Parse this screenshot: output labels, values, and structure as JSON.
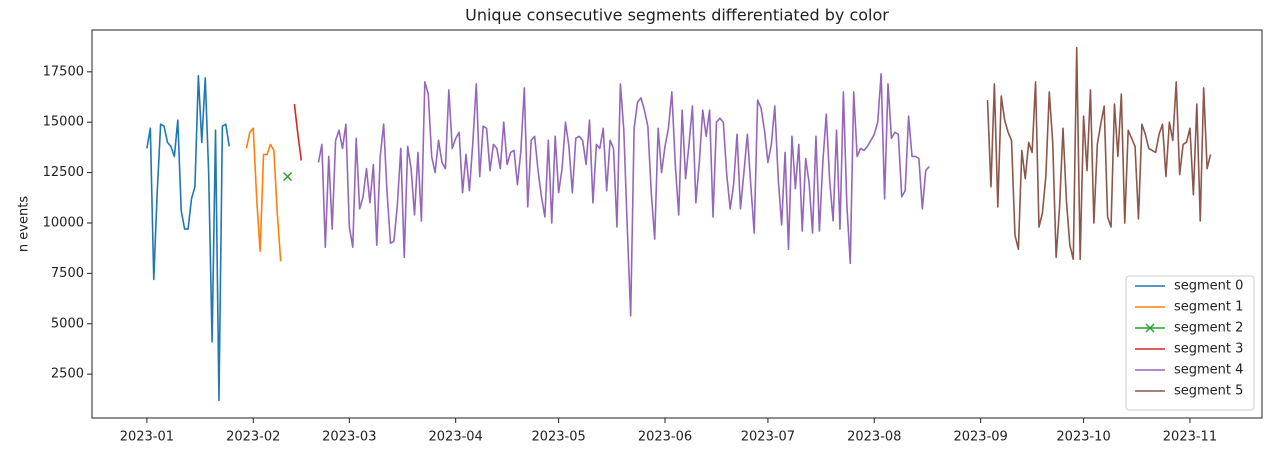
{
  "chart_data": {
    "type": "line",
    "title": "Unique consecutive segments differentiated by color",
    "ylabel": "n events",
    "ylim": [
      325,
      19575
    ],
    "yticks": [
      2500,
      5000,
      7500,
      10000,
      12500,
      15000,
      17500
    ],
    "xlim": [
      "2022-12-16",
      "2023-11-22"
    ],
    "xticks": [
      "2023-01",
      "2023-02",
      "2023-03",
      "2023-04",
      "2023-05",
      "2023-06",
      "2023-07",
      "2023-08",
      "2023-09",
      "2023-10",
      "2023-11"
    ],
    "legend": "lower right",
    "series": [
      {
        "name": "segment 0",
        "color": "#1f77b4",
        "x": [
          "2023-01-01",
          "2023-01-02",
          "2023-01-03",
          "2023-01-04",
          "2023-01-05",
          "2023-01-06",
          "2023-01-07",
          "2023-01-08",
          "2023-01-09",
          "2023-01-10",
          "2023-01-11",
          "2023-01-12",
          "2023-01-13",
          "2023-01-14",
          "2023-01-15",
          "2023-01-16",
          "2023-01-17",
          "2023-01-18",
          "2023-01-19",
          "2023-01-20",
          "2023-01-21",
          "2023-01-22",
          "2023-01-23",
          "2023-01-24",
          "2023-01-25"
        ],
        "values": [
          13700,
          14700,
          7200,
          11500,
          14900,
          14800,
          14000,
          13800,
          13300,
          15100,
          10600,
          9700,
          9700,
          11200,
          11800,
          17300,
          14000,
          17200,
          12500,
          4100,
          14600,
          1200,
          14800,
          14900,
          13800
        ]
      },
      {
        "name": "segment 1",
        "color": "#ff7f0e",
        "x": [
          "2023-01-30",
          "2023-01-31",
          "2023-02-01",
          "2023-02-02",
          "2023-02-03",
          "2023-02-04",
          "2023-02-05",
          "2023-02-06",
          "2023-02-07",
          "2023-02-08",
          "2023-02-09"
        ],
        "values": [
          13700,
          14500,
          14700,
          11200,
          8600,
          13400,
          13400,
          13900,
          13600,
          10500,
          8100
        ]
      },
      {
        "name": "segment 2",
        "color": "#2ca02c",
        "marker": "x",
        "x": [
          "2023-02-11"
        ],
        "values": [
          12300
        ]
      },
      {
        "name": "segment 3",
        "color": "#d62728",
        "x": [
          "2023-02-13",
          "2023-02-14",
          "2023-02-15"
        ],
        "values": [
          15900,
          14400,
          13100
        ]
      },
      {
        "name": "segment 4",
        "color": "#9467bd",
        "x": [
          "2023-02-20",
          "2023-02-21",
          "2023-02-22",
          "2023-02-23",
          "2023-02-24",
          "2023-02-25",
          "2023-02-26",
          "2023-02-27",
          "2023-02-28",
          "2023-03-01",
          "2023-03-02",
          "2023-03-03",
          "2023-03-04",
          "2023-03-05",
          "2023-03-06",
          "2023-03-07",
          "2023-03-08",
          "2023-03-09",
          "2023-03-10",
          "2023-03-11",
          "2023-03-12",
          "2023-03-13",
          "2023-03-14",
          "2023-03-15",
          "2023-03-16",
          "2023-03-17",
          "2023-03-18",
          "2023-03-19",
          "2023-03-20",
          "2023-03-21",
          "2023-03-22",
          "2023-03-23",
          "2023-03-24",
          "2023-03-25",
          "2023-03-26",
          "2023-03-27",
          "2023-03-28",
          "2023-03-29",
          "2023-03-30",
          "2023-03-31",
          "2023-04-01",
          "2023-04-02",
          "2023-04-03",
          "2023-04-04",
          "2023-04-05",
          "2023-04-06",
          "2023-04-07",
          "2023-04-08",
          "2023-04-09",
          "2023-04-10",
          "2023-04-11",
          "2023-04-12",
          "2023-04-13",
          "2023-04-14",
          "2023-04-15",
          "2023-04-16",
          "2023-04-17",
          "2023-04-18",
          "2023-04-19",
          "2023-04-20",
          "2023-04-21",
          "2023-04-22",
          "2023-04-23",
          "2023-04-24",
          "2023-04-25",
          "2023-04-26",
          "2023-04-27",
          "2023-04-28",
          "2023-04-29",
          "2023-04-30",
          "2023-05-01",
          "2023-05-02",
          "2023-05-03",
          "2023-05-04",
          "2023-05-05",
          "2023-05-06",
          "2023-05-07",
          "2023-05-08",
          "2023-05-09",
          "2023-05-10",
          "2023-05-11",
          "2023-05-12",
          "2023-05-13",
          "2023-05-14",
          "2023-05-15",
          "2023-05-16",
          "2023-05-17",
          "2023-05-18",
          "2023-05-19",
          "2023-05-20",
          "2023-05-21",
          "2023-05-22",
          "2023-05-23",
          "2023-05-24",
          "2023-05-25",
          "2023-05-26",
          "2023-05-27",
          "2023-05-28",
          "2023-05-29",
          "2023-05-30",
          "2023-05-31",
          "2023-06-01",
          "2023-06-02",
          "2023-06-03",
          "2023-06-04",
          "2023-06-05",
          "2023-06-06",
          "2023-06-07",
          "2023-06-08",
          "2023-06-09",
          "2023-06-10",
          "2023-06-11",
          "2023-06-12",
          "2023-06-13",
          "2023-06-14",
          "2023-06-15",
          "2023-06-16",
          "2023-06-17",
          "2023-06-18",
          "2023-06-19",
          "2023-06-20",
          "2023-06-21",
          "2023-06-22",
          "2023-06-23",
          "2023-06-24",
          "2023-06-25",
          "2023-06-26",
          "2023-06-27",
          "2023-06-28",
          "2023-06-29",
          "2023-06-30",
          "2023-07-01",
          "2023-07-02",
          "2023-07-03",
          "2023-07-04",
          "2023-07-05",
          "2023-07-06",
          "2023-07-07",
          "2023-07-08",
          "2023-07-09",
          "2023-07-10",
          "2023-07-11",
          "2023-07-12",
          "2023-07-13",
          "2023-07-14",
          "2023-07-15",
          "2023-07-16",
          "2023-07-17",
          "2023-07-18",
          "2023-07-19",
          "2023-07-20",
          "2023-07-21",
          "2023-07-22",
          "2023-07-23",
          "2023-07-24",
          "2023-07-25",
          "2023-07-26",
          "2023-07-27",
          "2023-07-28",
          "2023-07-29",
          "2023-07-30",
          "2023-07-31",
          "2023-08-01",
          "2023-08-02",
          "2023-08-03",
          "2023-08-04",
          "2023-08-05",
          "2023-08-06",
          "2023-08-07",
          "2023-08-08",
          "2023-08-09",
          "2023-08-10",
          "2023-08-11",
          "2023-08-12",
          "2023-08-13",
          "2023-08-14",
          "2023-08-15",
          "2023-08-16",
          "2023-08-17"
        ],
        "values": [
          13000,
          13900,
          8800,
          13300,
          9700,
          14100,
          14600,
          13700,
          14900,
          9800,
          8800,
          14200,
          10700,
          11300,
          12700,
          11000,
          12900,
          8900,
          13300,
          14900,
          11500,
          9000,
          9100,
          10900,
          13700,
          8300,
          13800,
          12700,
          10400,
          13500,
          10100,
          17000,
          16400,
          13300,
          12500,
          14100,
          13000,
          12700,
          16600,
          13700,
          14200,
          14500,
          11500,
          13400,
          11600,
          14000,
          16900,
          12300,
          14800,
          14700,
          12600,
          13900,
          13700,
          12700,
          15000,
          12900,
          13500,
          13600,
          11900,
          13600,
          16700,
          10800,
          14100,
          14300,
          12600,
          11300,
          10300,
          14100,
          10000,
          14300,
          11500,
          12700,
          15000,
          13800,
          11500,
          14200,
          14300,
          14100,
          12900,
          15100,
          11000,
          13900,
          13700,
          14700,
          11600,
          14100,
          13700,
          9800,
          16900,
          14600,
          9800,
          5400,
          14700,
          16000,
          16200,
          15600,
          14800,
          11500,
          9200,
          14700,
          12500,
          13800,
          14700,
          16500,
          12900,
          10400,
          15600,
          12200,
          13900,
          15800,
          11000,
          13000,
          15600,
          14300,
          15600,
          10300,
          15000,
          15200,
          15000,
          12400,
          10700,
          11900,
          14400,
          10700,
          12500,
          14400,
          11900,
          9500,
          16100,
          15700,
          14600,
          13000,
          13900,
          15800,
          12200,
          9900,
          13500,
          8700,
          14300,
          11700,
          13900,
          9600,
          13200,
          12000,
          9500,
          14300,
          9600,
          13000,
          15400,
          12100,
          10100,
          14600,
          9700,
          16500,
          10900,
          8000,
          16500,
          13300,
          13700,
          13600,
          13800,
          14100,
          14400,
          15000,
          17400,
          11200,
          16900,
          14200,
          14500,
          14400,
          11300,
          11600,
          15300,
          13300,
          13300,
          13200,
          10700,
          12600,
          12800
        ]
      },
      {
        "name": "segment 5",
        "color": "#8c564b",
        "x": [
          "2023-09-03",
          "2023-09-04",
          "2023-09-05",
          "2023-09-06",
          "2023-09-07",
          "2023-09-08",
          "2023-09-09",
          "2023-09-10",
          "2023-09-11",
          "2023-09-12",
          "2023-09-13",
          "2023-09-14",
          "2023-09-15",
          "2023-09-16",
          "2023-09-17",
          "2023-09-18",
          "2023-09-19",
          "2023-09-20",
          "2023-09-21",
          "2023-09-22",
          "2023-09-23",
          "2023-09-24",
          "2023-09-25",
          "2023-09-26",
          "2023-09-27",
          "2023-09-28",
          "2023-09-29",
          "2023-09-30",
          "2023-10-01",
          "2023-10-02",
          "2023-10-03",
          "2023-10-04",
          "2023-10-05",
          "2023-10-06",
          "2023-10-07",
          "2023-10-08",
          "2023-10-09",
          "2023-10-10",
          "2023-10-11",
          "2023-10-12",
          "2023-10-13",
          "2023-10-14",
          "2023-10-15",
          "2023-10-16",
          "2023-10-17",
          "2023-10-18",
          "2023-10-19",
          "2023-10-20",
          "2023-10-21",
          "2023-10-22",
          "2023-10-23",
          "2023-10-24",
          "2023-10-25",
          "2023-10-26",
          "2023-10-27",
          "2023-10-28",
          "2023-10-29",
          "2023-10-30",
          "2023-10-31",
          "2023-11-01",
          "2023-11-02",
          "2023-11-03",
          "2023-11-04",
          "2023-11-05",
          "2023-11-06",
          "2023-11-07"
        ],
        "values": [
          16100,
          11800,
          16900,
          10800,
          16300,
          15100,
          14500,
          14100,
          9400,
          8700,
          13600,
          12200,
          14000,
          13500,
          17000,
          9800,
          10500,
          12300,
          16500,
          14000,
          8300,
          10800,
          14700,
          11100,
          8900,
          8200,
          18700,
          8200,
          15300,
          12600,
          16600,
          10000,
          13900,
          14900,
          15800,
          10300,
          9800,
          15900,
          13300,
          16400,
          10000,
          14600,
          14200,
          13800,
          10200,
          14900,
          14400,
          13700,
          13600,
          13500,
          14400,
          14900,
          12300,
          15000,
          14100,
          17000,
          12400,
          13900,
          14000,
          14700,
          11400,
          15900,
          10100,
          16700,
          12700,
          13400
        ]
      }
    ]
  }
}
